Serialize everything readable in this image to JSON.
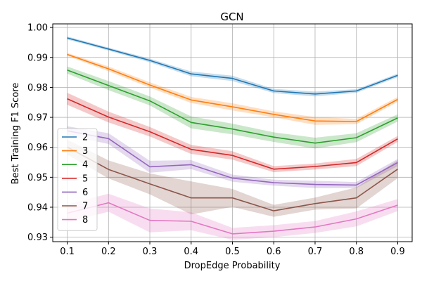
{
  "chart_data": {
    "type": "line",
    "title": "GCN",
    "xlabel": "DropEdge Probability",
    "ylabel": "Best Training F1 Score",
    "x": [
      0.1,
      0.2,
      0.3,
      0.4,
      0.5,
      0.6,
      0.7,
      0.8,
      0.9
    ],
    "x_ticks": [
      "0.1",
      "0.2",
      "0.3",
      "0.4",
      "0.5",
      "0.6",
      "0.7",
      "0.8",
      "0.9"
    ],
    "xlim": [
      0.065,
      0.935
    ],
    "ylim": [
      0.9285,
      1.0012
    ],
    "y_ticks": [
      "0.93",
      "0.94",
      "0.95",
      "0.96",
      "0.97",
      "0.98",
      "0.99",
      "1.00"
    ],
    "y_tick_values": [
      0.93,
      0.94,
      0.95,
      0.96,
      0.97,
      0.98,
      0.99,
      1.0
    ],
    "grid": true,
    "legend_position": "left",
    "series": [
      {
        "name": "2",
        "color": "#1f77b4",
        "values": [
          0.9965,
          0.9928,
          0.989,
          0.9845,
          0.983,
          0.9788,
          0.9778,
          0.9788,
          0.984
        ],
        "band": [
          0.0005,
          0.0005,
          0.0006,
          0.0008,
          0.0009,
          0.0007,
          0.0008,
          0.0006,
          0.0006
        ]
      },
      {
        "name": "3",
        "color": "#ff7f0e",
        "values": [
          0.991,
          0.9862,
          0.9808,
          0.9758,
          0.9735,
          0.971,
          0.9688,
          0.9686,
          0.976
        ],
        "band": [
          0.0005,
          0.0008,
          0.0009,
          0.001,
          0.0012,
          0.001,
          0.0013,
          0.0009,
          0.0008
        ]
      },
      {
        "name": "4",
        "color": "#2ca02c",
        "values": [
          0.9858,
          0.9806,
          0.9755,
          0.9683,
          0.9661,
          0.9634,
          0.9614,
          0.9632,
          0.9698
        ],
        "band": [
          0.0012,
          0.0015,
          0.0015,
          0.002,
          0.0018,
          0.0016,
          0.0018,
          0.0015,
          0.0012
        ]
      },
      {
        "name": "5",
        "color": "#d62728",
        "values": [
          0.9762,
          0.9701,
          0.9652,
          0.9593,
          0.9573,
          0.9527,
          0.9536,
          0.9549,
          0.9628
        ],
        "band": [
          0.002,
          0.0018,
          0.0016,
          0.0015,
          0.0014,
          0.001,
          0.001,
          0.0012,
          0.001
        ]
      },
      {
        "name": "6",
        "color": "#9467bd",
        "values": [
          0.9655,
          0.9629,
          0.9535,
          0.9542,
          0.9497,
          0.9482,
          0.9476,
          0.9474,
          0.9549
        ],
        "band": [
          0.0015,
          0.0018,
          0.002,
          0.0015,
          0.0012,
          0.001,
          0.0012,
          0.001,
          0.0012
        ]
      },
      {
        "name": "7",
        "color": "#8c564b",
        "values": [
          0.9601,
          0.9526,
          0.9478,
          0.9431,
          0.9431,
          0.9388,
          0.9412,
          0.9431,
          0.9527
        ],
        "band": [
          0.0025,
          0.003,
          0.0035,
          0.0055,
          0.003,
          0.002,
          0.002,
          0.0035,
          0.003
        ]
      },
      {
        "name": "8",
        "color": "#e377c2",
        "values": [
          0.938,
          0.9415,
          0.9356,
          0.9353,
          0.9311,
          0.932,
          0.9334,
          0.9361,
          0.9407
        ],
        "band": [
          0.003,
          0.003,
          0.004,
          0.003,
          0.002,
          0.002,
          0.002,
          0.0025,
          0.002
        ]
      }
    ]
  }
}
